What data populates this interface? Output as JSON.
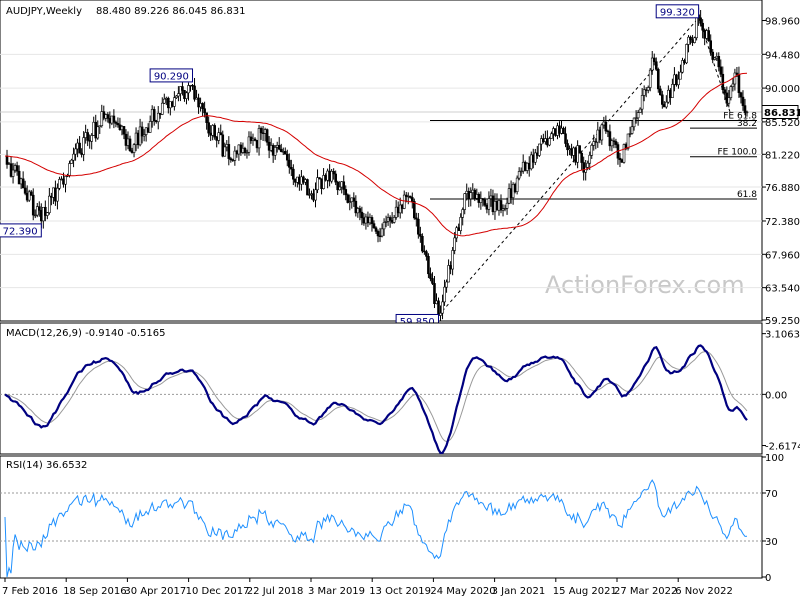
{
  "chart_data": [
    {
      "type": "candlestick",
      "title": "AUDJPY,Weekly",
      "ohlc_readout": "88.480 89.226 86.045 86.831",
      "last_price": "86.831",
      "ylim": [
        59.25,
        101.55
      ],
      "y_ticks": [
        "98.960",
        "94.480",
        "90.000",
        "85.520",
        "81.220",
        "76.880",
        "72.380",
        "67.960",
        "63.540",
        "59.250"
      ],
      "x_ticks": [
        "7 Feb 2016",
        "18 Sep 2016",
        "30 Apr 2017",
        "10 Dec 2017",
        "22 Jul 2018",
        "3 Mar 2019",
        "13 Oct 2019",
        "24 May 2020",
        "3 Jan 2021",
        "15 Aug 2021",
        "27 Mar 2022",
        "6 Nov 2022"
      ],
      "price_labels": [
        "72.390",
        "90.290",
        "59.850",
        "99.320"
      ],
      "levels": [
        {
          "label": "FE 61.8",
          "value": 85.7
        },
        {
          "label": "38.2",
          "value": 84.7
        },
        {
          "label": "FE 100.0",
          "value": 80.9
        },
        {
          "label": "61.8",
          "value": 75.3
        }
      ],
      "watermark": "ActionForex.com",
      "anchors": [
        {
          "date": "2016-02-07",
          "value": 81.0
        },
        {
          "date": "2016-06-12",
          "value": 72.39
        },
        {
          "date": "2016-09-18",
          "value": 80.0
        },
        {
          "date": "2017-01-15",
          "value": 86.0
        },
        {
          "date": "2017-04-30",
          "value": 82.5
        },
        {
          "date": "2017-08-06",
          "value": 88.0
        },
        {
          "date": "2017-11-19",
          "value": 90.29
        },
        {
          "date": "2017-12-10",
          "value": 87.5
        },
        {
          "date": "2018-04-01",
          "value": 80.5
        },
        {
          "date": "2018-07-22",
          "value": 84.0
        },
        {
          "date": "2018-10-21",
          "value": 79.5
        },
        {
          "date": "2019-01-06",
          "value": 76.0
        },
        {
          "date": "2019-03-03",
          "value": 79.0
        },
        {
          "date": "2019-06-02",
          "value": 75.0
        },
        {
          "date": "2019-08-18",
          "value": 71.0
        },
        {
          "date": "2019-12-15",
          "value": 75.5
        },
        {
          "date": "2020-03-22",
          "value": 59.85
        },
        {
          "date": "2020-06-21",
          "value": 76.0
        },
        {
          "date": "2020-11-01",
          "value": 74.0
        },
        {
          "date": "2021-01-03",
          "value": 79.0
        },
        {
          "date": "2021-05-09",
          "value": 85.0
        },
        {
          "date": "2021-08-15",
          "value": 79.5
        },
        {
          "date": "2021-10-17",
          "value": 85.5
        },
        {
          "date": "2021-12-12",
          "value": 80.5
        },
        {
          "date": "2022-04-10",
          "value": 93.5
        },
        {
          "date": "2022-05-15",
          "value": 87.5
        },
        {
          "date": "2022-09-11",
          "value": 99.32
        },
        {
          "date": "2022-11-06",
          "value": 94.0
        },
        {
          "date": "2022-12-18",
          "value": 88.0
        },
        {
          "date": "2023-01-15",
          "value": 92.0
        },
        {
          "date": "2023-02-26",
          "value": 86.831
        }
      ],
      "date_range": [
        "2016-02-07",
        "2023-02-26"
      ],
      "ma_window": 55,
      "trendlines": [
        {
          "from": {
            "date": "2020-03-22",
            "value": 59.85
          },
          "to": {
            "date": "2022-09-11",
            "value": 99.32
          }
        },
        {
          "from": {
            "date": "2022-09-11",
            "value": 99.32
          },
          "to": {
            "date": "2023-01-01",
            "value": 86.5
          }
        }
      ],
      "series": [
        {
          "name": "",
          "color": "#000000",
          "kind": "candles"
        },
        {
          "name": "",
          "color": "#d40000",
          "kind": "moving-average"
        }
      ]
    },
    {
      "type": "line",
      "title": "MACD(12,26,9) -0.9140 -0.5165",
      "ylim": [
        -3.0,
        3.6
      ],
      "y_ticks": [
        {
          "label": "3.1063",
          "value": 3.1063
        },
        {
          "label": "0.00",
          "value": 0.0
        },
        {
          "label": "-2.6174",
          "value": -2.6174
        }
      ],
      "series": [
        {
          "name": "",
          "color": "#000080",
          "kind": "macd"
        },
        {
          "name": "",
          "color": "#9a9a9a",
          "kind": "signal"
        }
      ]
    },
    {
      "type": "line",
      "title": "RSI(14) 36.6532",
      "ylim": [
        0,
        100
      ],
      "y_ticks": [
        {
          "label": "100",
          "value": 100
        },
        {
          "label": "70",
          "value": 70
        },
        {
          "label": "30",
          "value": 30
        },
        {
          "label": "0",
          "value": 0
        }
      ],
      "series": [
        {
          "name": "",
          "color": "#1e90ff",
          "kind": "rsi"
        }
      ]
    }
  ]
}
